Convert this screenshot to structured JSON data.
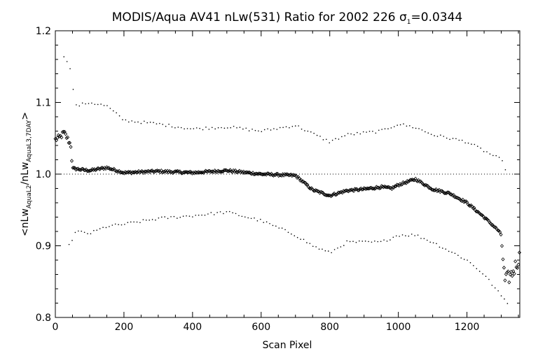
{
  "chart_data": {
    "type": "scatter",
    "title_main": "MODIS/Aqua AV41 nLw(531) Ratio for 2002 226 ",
    "title_sigma": "σ",
    "title_sigma_sub": "1",
    "title_value": "=0.0344",
    "xlabel": "Scan Pixel",
    "ylabel_parts": {
      "open": "<nLw",
      "sub1": "AquaL2",
      "mid": "/nLw",
      "sub2": "AquaL3,7DAY",
      "close": ">"
    },
    "xlim": [
      0,
      1354
    ],
    "ylim": [
      0.8,
      1.2
    ],
    "x_ticks": [
      "0",
      "200",
      "400",
      "600",
      "800",
      "1000",
      "1200"
    ],
    "y_ticks": [
      "0.8",
      "0.9",
      "1.0",
      "1.1",
      "1.2"
    ],
    "reference_line": 1.0,
    "series": [
      {
        "role": "mean ratio",
        "marker": "diamond",
        "knots": [
          [
            0,
            1.048
          ],
          [
            15,
            1.052
          ],
          [
            25,
            1.058
          ],
          [
            35,
            1.05
          ],
          [
            45,
            1.04
          ],
          [
            50,
            1.008
          ],
          [
            80,
            1.006
          ],
          [
            100,
            1.005
          ],
          [
            150,
            1.009
          ],
          [
            200,
            1.002
          ],
          [
            300,
            1.004
          ],
          [
            400,
            1.002
          ],
          [
            500,
            1.005
          ],
          [
            600,
            1.0
          ],
          [
            700,
            0.998
          ],
          [
            750,
            0.978
          ],
          [
            800,
            0.97
          ],
          [
            850,
            0.977
          ],
          [
            900,
            0.979
          ],
          [
            950,
            0.982
          ],
          [
            980,
            0.98
          ],
          [
            1000,
            0.985
          ],
          [
            1050,
            0.993
          ],
          [
            1100,
            0.979
          ],
          [
            1150,
            0.973
          ],
          [
            1200,
            0.96
          ],
          [
            1250,
            0.94
          ],
          [
            1290,
            0.922
          ],
          [
            1300,
            0.915
          ],
          [
            1310,
            0.85
          ],
          [
            1330,
            0.86
          ],
          [
            1354,
            0.885
          ]
        ]
      },
      {
        "role": "upper envelope",
        "marker": "dot",
        "knots": [
          [
            25,
            1.165
          ],
          [
            40,
            1.155
          ],
          [
            60,
            1.095
          ],
          [
            100,
            1.1
          ],
          [
            150,
            1.095
          ],
          [
            200,
            1.075
          ],
          [
            300,
            1.07
          ],
          [
            400,
            1.063
          ],
          [
            500,
            1.066
          ],
          [
            600,
            1.06
          ],
          [
            700,
            1.068
          ],
          [
            800,
            1.045
          ],
          [
            850,
            1.055
          ],
          [
            950,
            1.06
          ],
          [
            1000,
            1.07
          ],
          [
            1050,
            1.065
          ],
          [
            1100,
            1.055
          ],
          [
            1200,
            1.045
          ],
          [
            1300,
            1.02
          ],
          [
            1320,
            1.0
          ]
        ]
      },
      {
        "role": "lower envelope",
        "marker": "dot",
        "knots": [
          [
            40,
            0.9
          ],
          [
            60,
            0.92
          ],
          [
            100,
            0.917
          ],
          [
            150,
            0.927
          ],
          [
            200,
            0.93
          ],
          [
            300,
            0.938
          ],
          [
            400,
            0.942
          ],
          [
            500,
            0.947
          ],
          [
            600,
            0.935
          ],
          [
            700,
            0.915
          ],
          [
            750,
            0.9
          ],
          [
            800,
            0.89
          ],
          [
            850,
            0.905
          ],
          [
            950,
            0.905
          ],
          [
            1000,
            0.915
          ],
          [
            1050,
            0.915
          ],
          [
            1100,
            0.905
          ],
          [
            1200,
            0.88
          ],
          [
            1250,
            0.86
          ],
          [
            1300,
            0.83
          ],
          [
            1320,
            0.82
          ]
        ]
      }
    ]
  }
}
